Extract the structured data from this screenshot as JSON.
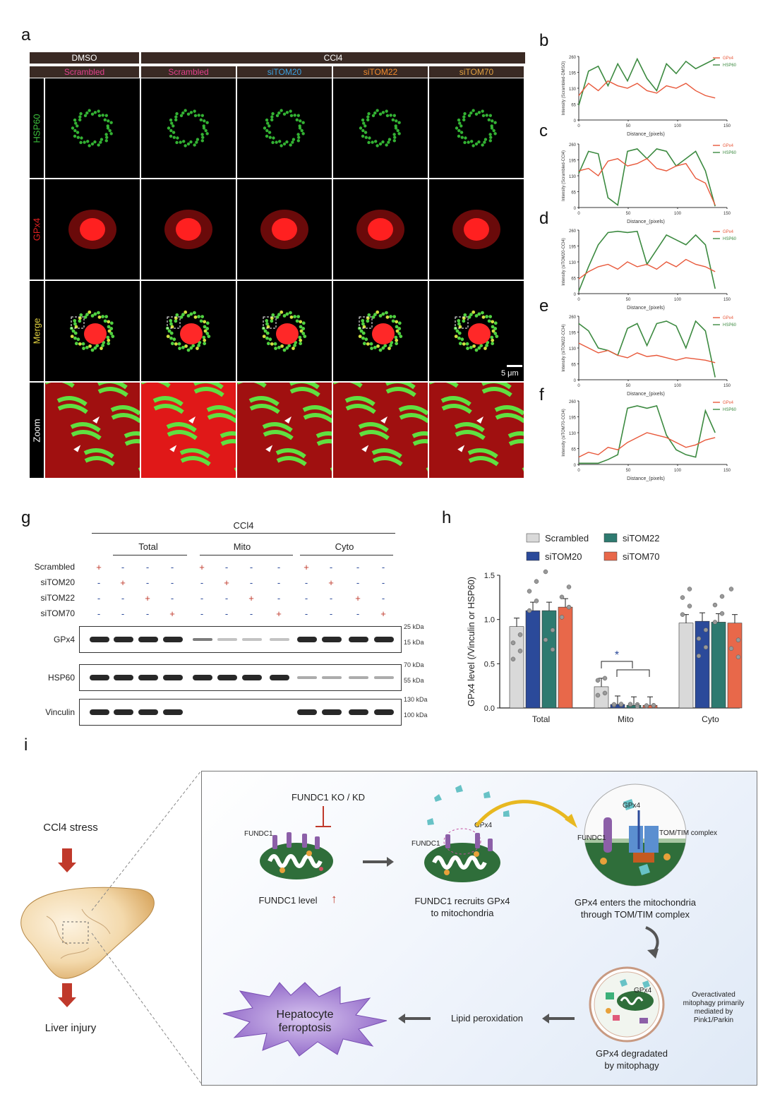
{
  "panels": {
    "a": "a",
    "b": "b",
    "c": "c",
    "d": "d",
    "e": "e",
    "f": "f",
    "g": "g",
    "h": "h",
    "i": "i"
  },
  "panel_a": {
    "treatment_headers": [
      "DMSO",
      "CCl4"
    ],
    "condition_headers": [
      {
        "label": "Scrambled",
        "color": "#e0408c"
      },
      {
        "label": "Scrambled",
        "color": "#e0408c"
      },
      {
        "label": "siTOM20",
        "color": "#3aa0e0"
      },
      {
        "label": "siTOM22",
        "color": "#f08a2c"
      },
      {
        "label": "siTOM70",
        "color": "#e0a040"
      }
    ],
    "row_labels": [
      {
        "label": "HSP60",
        "color": "#3cbf3c"
      },
      {
        "label": "GPx4",
        "color": "#e02020"
      },
      {
        "label": "Merge",
        "color": "#e0d040"
      },
      {
        "label": "Zoom",
        "color": "#ffffff"
      }
    ],
    "scale_bar": "5 μm"
  },
  "line_plots": [
    {
      "id": "b",
      "ylabel": "Intensity (Scrambled-DMSO)",
      "xlabel": "Distance_(pixels)",
      "yticks": [
        "260",
        "195",
        "130",
        "65",
        "0"
      ],
      "xticks": [
        "0",
        "50",
        "100",
        "150"
      ],
      "legend": [
        "GPx4",
        "HSP60"
      ]
    },
    {
      "id": "c",
      "ylabel": "Intensity (Scrambled-CCl4)",
      "xlabel": "Distance_(pixels)",
      "yticks": [
        "260",
        "195",
        "130",
        "65",
        "0"
      ],
      "xticks": [
        "0",
        "50",
        "100",
        "150"
      ],
      "legend": [
        "GPx4",
        "HSP60"
      ]
    },
    {
      "id": "d",
      "ylabel": "Intensity (siTOM20-CCl4)",
      "xlabel": "Distance_(pixels)",
      "yticks": [
        "260",
        "195",
        "130",
        "65",
        "0"
      ],
      "xticks": [
        "0",
        "50",
        "100",
        "150"
      ],
      "legend": [
        "GPx4",
        "HSP60"
      ]
    },
    {
      "id": "e",
      "ylabel": "Intensity (siTOM22-CCl4)",
      "xlabel": "Distance_(pixels)",
      "yticks": [
        "260",
        "195",
        "130",
        "65",
        "0"
      ],
      "xticks": [
        "0",
        "50",
        "100",
        "150"
      ],
      "legend": [
        "GPx4",
        "HSP60"
      ]
    },
    {
      "id": "f",
      "ylabel": "Intensity (siTOM70-CCl4)",
      "xlabel": "Distance_(pixels)",
      "yticks": [
        "260",
        "195",
        "130",
        "65",
        "0"
      ],
      "xticks": [
        "0",
        "50",
        "100",
        "150"
      ],
      "legend": [
        "GPx4",
        "HSP60"
      ]
    }
  ],
  "panel_g": {
    "top_label": "CCl4",
    "groups": [
      "Total",
      "Mito",
      "Cyto"
    ],
    "conditions": [
      "Scrambled",
      "siTOM20",
      "siTOM22",
      "siTOM70"
    ],
    "blots": [
      {
        "name": "GPx4",
        "markers": [
          "25 kDa",
          "15 kDa"
        ]
      },
      {
        "name": "HSP60",
        "markers": [
          "70 kDa",
          "55 kDa"
        ]
      },
      {
        "name": "Vinculin",
        "markers": [
          "130 kDa",
          "100 kDa"
        ]
      }
    ]
  },
  "chart_data": {
    "type": "bar",
    "categories": [
      "Total",
      "Mito",
      "Cyto"
    ],
    "series": [
      {
        "name": "Scrambled",
        "color": "#d9d9d9",
        "values": [
          0.92,
          0.24,
          0.96
        ]
      },
      {
        "name": "siTOM20",
        "color": "#2b4a9a",
        "values": [
          1.1,
          0.04,
          0.98
        ]
      },
      {
        "name": "siTOM22",
        "color": "#2e7a70",
        "values": [
          1.1,
          0.03,
          0.97
        ]
      },
      {
        "name": "siTOM70",
        "color": "#e8684a",
        "values": [
          1.14,
          0.03,
          0.96
        ]
      }
    ],
    "ylabel": "GPx4 level (/Vinculin or HSP60)",
    "ylim": [
      0,
      1.5
    ],
    "yticks": [
      "0.0",
      "0.5",
      "1.0",
      "1.5"
    ],
    "significance": "*",
    "legend_position": "top"
  },
  "panel_i": {
    "stress": "CCl4 stress",
    "injury": "Liver injury",
    "ko": "FUNDC1 KO / KD",
    "fundc1": "FUNDC1",
    "fundc1_level": "FUNDC1 level",
    "up_arrow": "↑",
    "recruit": "FUNDC1 recruits GPx4\nto mitochondria",
    "gpx4": "GPx4",
    "tomtim": "TOM/TIM complex",
    "enters": "GPx4 enters the mitochondria\nthrough TOM/TIM complex",
    "mitophagy_note": "Overactivated\nmitophagy primarily\nmediated by\nPink1/Parkin",
    "degraded": "GPx4 degradated\nby mitophagy",
    "lipid": "Lipid peroxidation",
    "ferroptosis": "Hepatocyte\nferroptosis"
  }
}
